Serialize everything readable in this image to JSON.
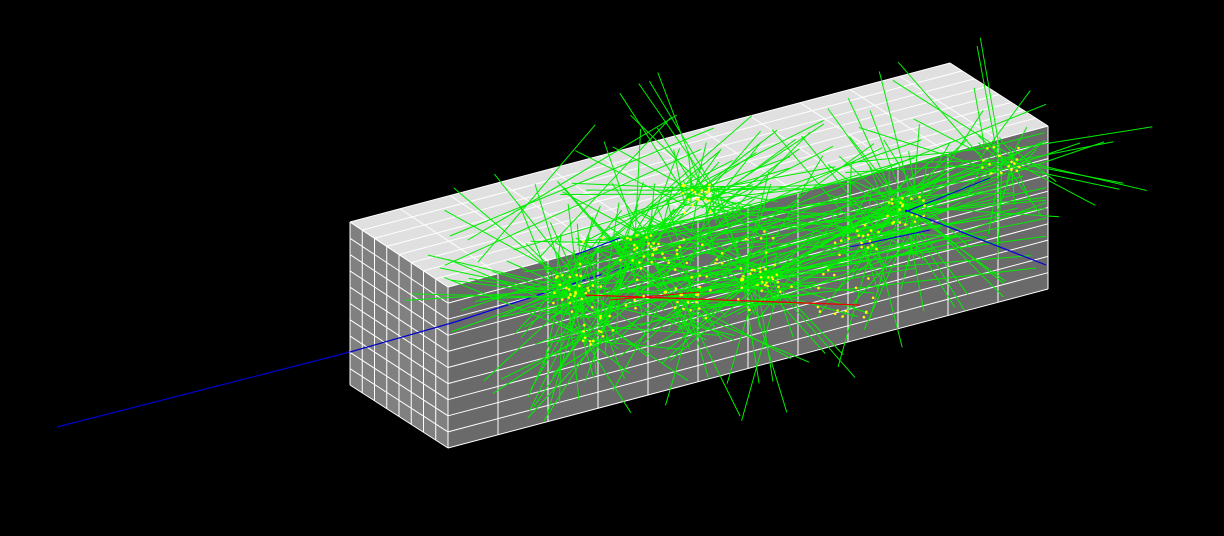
{
  "scene": {
    "background_color": "#000000",
    "detector": {
      "top_face_color": "#e0e0e0",
      "side_face_color": "#6a6a6a",
      "front_face_color": "#808080",
      "grid_line_color": "#ffffff",
      "long_segments": 12,
      "height_segments": 10,
      "depth_segments": 8
    },
    "track_colors": {
      "neutral": "#00ee00",
      "negative": "#ee0000",
      "positive": "#0000dd",
      "step_point": "#ffff00"
    },
    "incoming_particle_color": "#0000cc"
  }
}
